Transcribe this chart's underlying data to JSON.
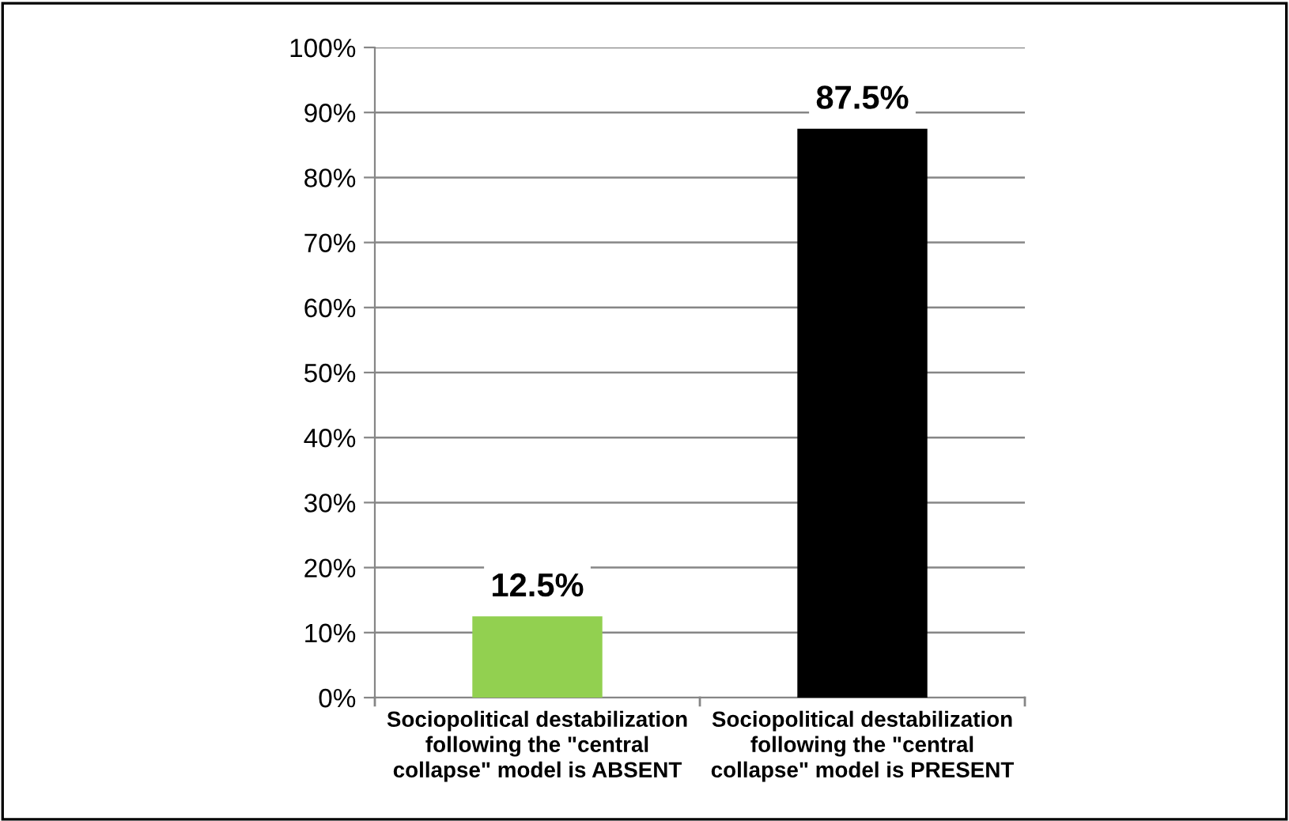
{
  "chart_data": {
    "type": "bar",
    "categories": [
      "Sociopolitical destabilization\nfollowing the \"central\ncollapse\" model is ABSENT",
      "Sociopolitical destabilization\nfollowing the \"central\ncollapse\" model is PRESENT"
    ],
    "values": [
      12.5,
      87.5
    ],
    "colors": [
      "#92d050",
      "#000000"
    ],
    "value_labels": [
      "12.5%",
      "87.5%"
    ],
    "ylim": [
      0,
      100
    ],
    "yticks": [
      {
        "value": 0,
        "label": "0%"
      },
      {
        "value": 10,
        "label": "10%"
      },
      {
        "value": 20,
        "label": "20%"
      },
      {
        "value": 30,
        "label": "30%"
      },
      {
        "value": 40,
        "label": "40%"
      },
      {
        "value": 50,
        "label": "50%"
      },
      {
        "value": 60,
        "label": "60%"
      },
      {
        "value": 70,
        "label": "70%"
      },
      {
        "value": 80,
        "label": "80%"
      },
      {
        "value": 90,
        "label": "90%"
      },
      {
        "value": 100,
        "label": "100%"
      }
    ],
    "grid": "y",
    "legend": false
  }
}
